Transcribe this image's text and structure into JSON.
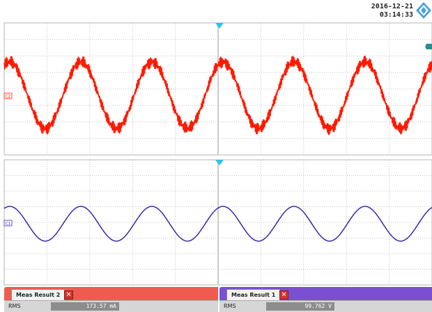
{
  "header": {
    "date": "2016-12-21",
    "time": "03:14:33"
  },
  "channels": {
    "current": {
      "marker": "C2",
      "color": "#ff1a00"
    },
    "voltage": {
      "marker": "C1",
      "color": "#3a2aa8"
    }
  },
  "results": [
    {
      "title": "Meas Result 2",
      "measurement": "RMS",
      "value": "173.57 mA",
      "color": "#f15a4e"
    },
    {
      "title": "Meas Result 1",
      "measurement": "RMS",
      "value": "99.762 V",
      "color": "#7a4fd1"
    }
  ],
  "icons": {
    "logo": "rohde-schwarz-logo-icon",
    "trigger": "trigger-position-icon",
    "close": "close-icon"
  }
}
